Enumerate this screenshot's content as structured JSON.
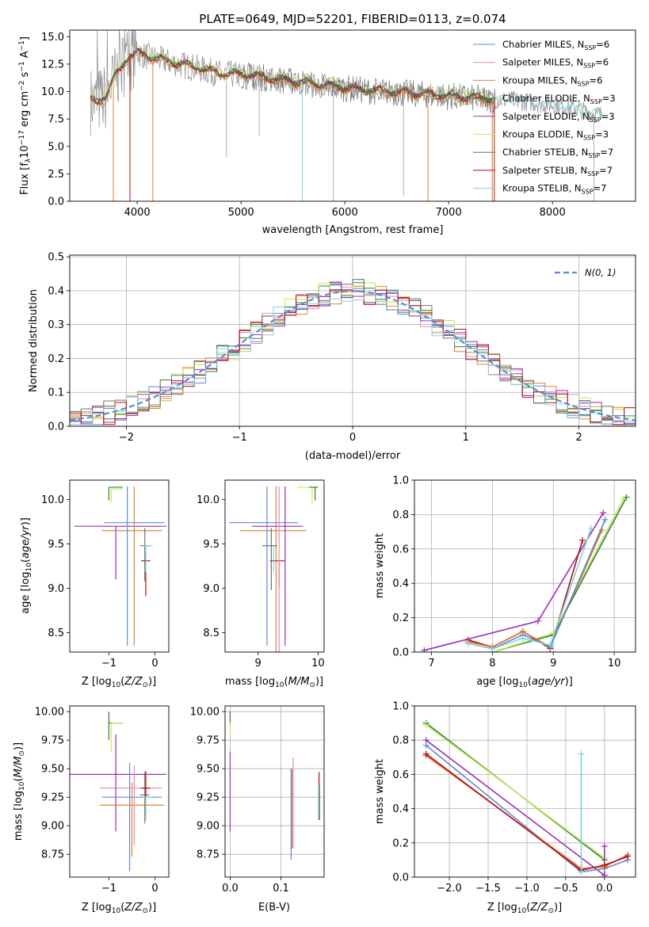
{
  "figure_title": "PLATE=0649, MJD=52201, FIBERID=0113, z=0.074",
  "colors": {
    "chabrier_miles": "#5b8ad6",
    "salpeter_miles": "#e58ab9",
    "kroupa_miles": "#e3862e",
    "chabrier_elodie": "#2e7d3e",
    "salpeter_elodie": "#9b2fb8",
    "kroupa_elodie": "#c6ea5a",
    "chabrier_stelib": "#6f6f6f",
    "salpeter_stelib": "#b01010",
    "kroupa_stelib": "#7ed4db",
    "gaussian": "#5b8ad6",
    "orange_alt": "#e8702e"
  },
  "chart_data": [
    {
      "id": "spectrum",
      "type": "line",
      "xlabel": "wavelength [Angstrom, rest frame]",
      "ylabel": "Flux [f",
      "xlim": [
        3350,
        8800
      ],
      "ylim": [
        0,
        15.6
      ],
      "xticks": [
        4000,
        5000,
        6000,
        7000,
        8000
      ],
      "yticks": [
        0.0,
        2.5,
        5.0,
        7.5,
        10.0,
        12.5,
        15.0
      ],
      "grid": false,
      "legend_position": "top-right",
      "data_trend": {
        "x": [
          3550,
          3600,
          3700,
          3800,
          3900,
          4000,
          4100,
          4300,
          4500,
          4800,
          5000,
          5200,
          5500,
          5800,
          6000,
          6200,
          6500,
          6800,
          7000,
          7200,
          7400,
          7600,
          7800,
          8000,
          8200,
          8400,
          8500
        ],
        "y": [
          9.2,
          9.0,
          9.5,
          11.5,
          13.0,
          13.5,
          13.2,
          12.7,
          12.3,
          11.6,
          11.5,
          11.3,
          10.9,
          10.5,
          10.3,
          10.1,
          9.9,
          9.7,
          9.6,
          9.4,
          9.3,
          9.2,
          9.0,
          8.8,
          8.5,
          8.0,
          7.8
        ]
      },
      "series": [
        {
          "name": "Chabrier MILES, N",
          "n": "=6",
          "color_key": "chabrier_miles"
        },
        {
          "name": "Salpeter MILES, N",
          "n": "=6",
          "color_key": "salpeter_miles"
        },
        {
          "name": "Kroupa MILES, N",
          "n": "=6",
          "color_key": "kroupa_miles"
        },
        {
          "name": "Chabrier ELODIE, N",
          "n": "=3",
          "color_key": "chabrier_elodie"
        },
        {
          "name": "Salpeter ELODIE, N",
          "n": "=3",
          "color_key": "salpeter_elodie"
        },
        {
          "name": "Kroupa ELODIE, N",
          "n": "=3",
          "color_key": "kroupa_elodie"
        },
        {
          "name": "Chabrier STELIB, N",
          "n": "=7",
          "color_key": "chabrier_stelib"
        },
        {
          "name": "Salpeter STELIB, N",
          "n": "=7",
          "color_key": "salpeter_stelib"
        },
        {
          "name": "Kroupa STELIB, N",
          "n": "=7",
          "color_key": "kroupa_stelib"
        }
      ],
      "legend_subscript": "SSP"
    },
    {
      "id": "residuals",
      "type": "line",
      "xlabel": "(data-model)/error",
      "ylabel": "Normed distribution",
      "xlim": [
        -2.5,
        2.5
      ],
      "ylim": [
        0,
        0.505
      ],
      "xticks": [
        -2,
        -1,
        0,
        1,
        2
      ],
      "yticks": [
        0.0,
        0.1,
        0.2,
        0.3,
        0.4,
        0.5
      ],
      "grid": true,
      "legend_position": "top-right",
      "legend_label": "N(0, 1)",
      "gaussian": {
        "mean": 0,
        "sigma": 1
      },
      "hist_bins": {
        "start": -2.5,
        "width": 0.1
      }
    },
    {
      "id": "age-vs-Z",
      "type": "scatter",
      "xlabel": "Z [log",
      "ylabel": "age  [log",
      "xlim": [
        -1.85,
        0.3
      ],
      "ylim": [
        8.28,
        10.22
      ],
      "xticks": [
        -1,
        0
      ],
      "yticks": [
        8.5,
        9.0,
        9.5,
        10.0
      ],
      "grid": false
    },
    {
      "id": "age-vs-mass",
      "type": "scatter",
      "xlabel": "mass [log",
      "ylabel": "",
      "xlim": [
        8.45,
        10.1
      ],
      "ylim": [
        8.28,
        10.22
      ],
      "xticks": [
        9,
        10
      ],
      "yticks": [
        8.5,
        9.0,
        9.5,
        10.0
      ],
      "grid": false
    },
    {
      "id": "massweight-vs-age",
      "type": "line",
      "xlabel": "age  [log",
      "ylabel": "mass weight",
      "xlim": [
        6.72,
        10.35
      ],
      "ylim": [
        0,
        1.0
      ],
      "xticks": [
        7,
        8,
        9,
        10
      ],
      "yticks": [
        0.0,
        0.2,
        0.4,
        0.6,
        0.8,
        1.0
      ],
      "grid": true,
      "series": [
        {
          "color_key": "salpeter_elodie",
          "x": [
            6.88,
            8.75,
            9.82
          ],
          "y": [
            0.01,
            0.18,
            0.81
          ]
        },
        {
          "color_key": "chabrier_elodie",
          "x": [
            8.0,
            9.0,
            10.2
          ],
          "y": [
            0.0,
            0.1,
            0.9
          ]
        },
        {
          "color_key": "kroupa_elodie",
          "x": [
            8.0,
            9.0,
            10.15
          ],
          "y": [
            0.0,
            0.11,
            0.89
          ]
        },
        {
          "color_key": "salpeter_stelib",
          "x": [
            7.6,
            8.0,
            8.5,
            8.95,
            9.48
          ],
          "y": [
            0.07,
            0.03,
            0.12,
            0.02,
            0.65
          ]
        },
        {
          "color_key": "orange_alt",
          "x": [
            7.6,
            8.0,
            8.5,
            8.95,
            9.8
          ],
          "y": [
            0.06,
            0.03,
            0.12,
            0.03,
            0.71
          ]
        },
        {
          "color_key": "chabrier_miles",
          "x": [
            7.6,
            8.0,
            8.5,
            8.95,
            9.85
          ],
          "y": [
            0.05,
            0.02,
            0.1,
            0.03,
            0.77
          ]
        },
        {
          "color_key": "kroupa_stelib",
          "x": [
            7.6,
            8.0,
            8.5,
            8.95,
            9.62
          ],
          "y": [
            0.05,
            0.02,
            0.08,
            0.04,
            0.72
          ]
        }
      ]
    },
    {
      "id": "mass-vs-Z",
      "type": "scatter",
      "xlabel": "Z [log",
      "ylabel": "mass [log",
      "xlim": [
        -1.85,
        0.3
      ],
      "ylim": [
        8.55,
        10.05
      ],
      "xticks": [
        -1,
        0
      ],
      "yticks": [
        8.75,
        9.0,
        9.25,
        9.5,
        9.75,
        10.0
      ],
      "grid": false
    },
    {
      "id": "mass-vs-ebv",
      "type": "scatter",
      "xlabel": "E(B-V)",
      "ylabel": "",
      "xlim": [
        -0.01,
        0.185
      ],
      "ylim": [
        8.55,
        10.05
      ],
      "xticks": [
        0.0,
        0.1
      ],
      "yticks": [
        8.75,
        9.0,
        9.25,
        9.5,
        9.75,
        10.0
      ],
      "grid": true
    },
    {
      "id": "massweight-vs-Z",
      "type": "line",
      "xlabel": "Z [log",
      "ylabel": "mass weight",
      "xlim": [
        -2.45,
        0.4
      ],
      "ylim": [
        0,
        1.0
      ],
      "xticks": [
        -2.0,
        -1.5,
        -1.0,
        -0.5,
        0.0
      ],
      "yticks": [
        0.0,
        0.2,
        0.4,
        0.6,
        0.8,
        1.0
      ],
      "grid": true,
      "series": [
        {
          "color_key": "chabrier_elodie",
          "x": [
            -2.3,
            0.0
          ],
          "y": [
            0.9,
            0.1
          ]
        },
        {
          "color_key": "kroupa_elodie",
          "x": [
            -2.3,
            0.0
          ],
          "y": [
            0.89,
            0.11
          ]
        },
        {
          "color_key": "salpeter_elodie",
          "x": [
            -2.3,
            0.0,
            0.0
          ],
          "y": [
            0.8,
            0.01,
            0.18
          ]
        },
        {
          "color_key": "chabrier_miles",
          "x": [
            -2.3,
            -0.3,
            0.0,
            0.3
          ],
          "y": [
            0.77,
            0.03,
            0.05,
            0.1
          ]
        },
        {
          "color_key": "orange_alt",
          "x": [
            -2.3,
            -0.3,
            0.0,
            0.3
          ],
          "y": [
            0.71,
            0.05,
            0.06,
            0.13
          ]
        },
        {
          "color_key": "salpeter_stelib",
          "x": [
            -2.3,
            -0.3,
            0.0,
            0.3
          ],
          "y": [
            0.72,
            0.04,
            0.07,
            0.12
          ]
        },
        {
          "color_key": "kroupa_stelib",
          "x": [
            -0.3,
            -0.3
          ],
          "y": [
            0.72,
            0.03
          ]
        }
      ]
    }
  ]
}
